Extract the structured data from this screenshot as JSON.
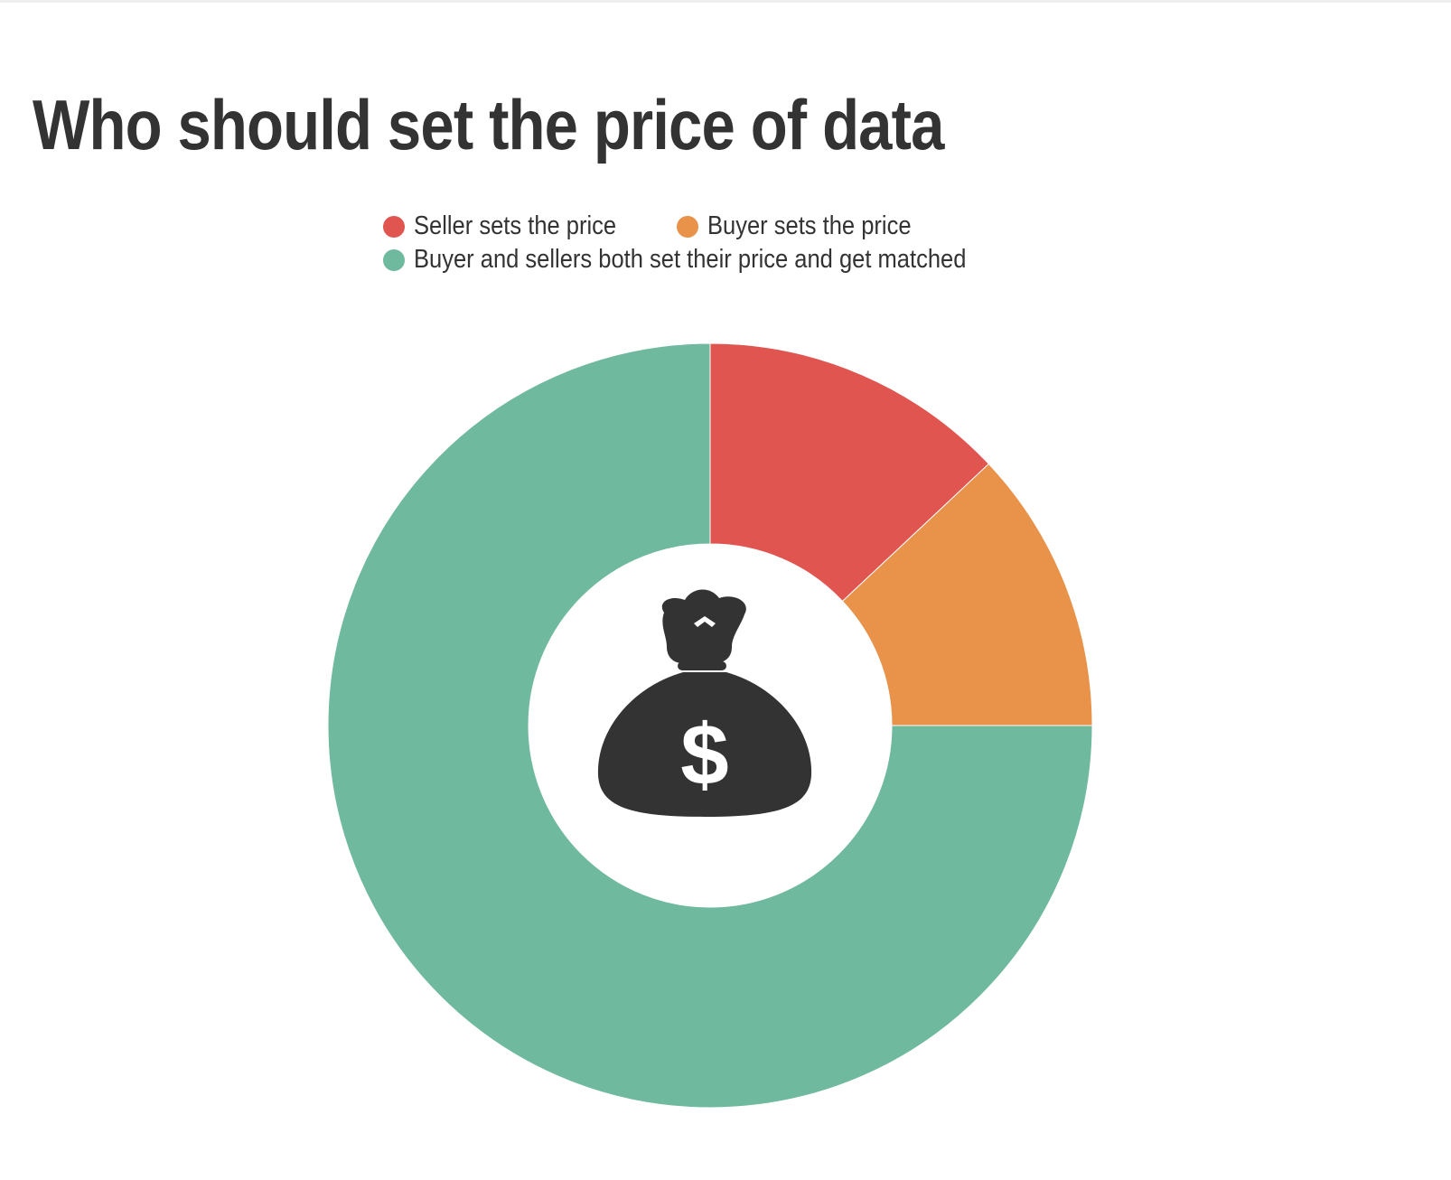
{
  "title": "Who should set the price of data",
  "chart_data": {
    "type": "pie",
    "title": "Who should set the price of data",
    "categories": [
      "Seller sets the price",
      "Buyer sets the price",
      "Buyer and sellers both set their price and get matched"
    ],
    "values": [
      13,
      12,
      75
    ],
    "colors": [
      "#e05550",
      "#e8924a",
      "#6fb99e"
    ],
    "legend_position": "top",
    "center_icon": "money-bag-icon"
  },
  "legend": [
    {
      "label": "Seller sets the price",
      "color": "#e05550"
    },
    {
      "label": "Buyer sets the price",
      "color": "#e8924a"
    },
    {
      "label": "Buyer and sellers both set their price and get matched",
      "color": "#6fb99e"
    }
  ]
}
